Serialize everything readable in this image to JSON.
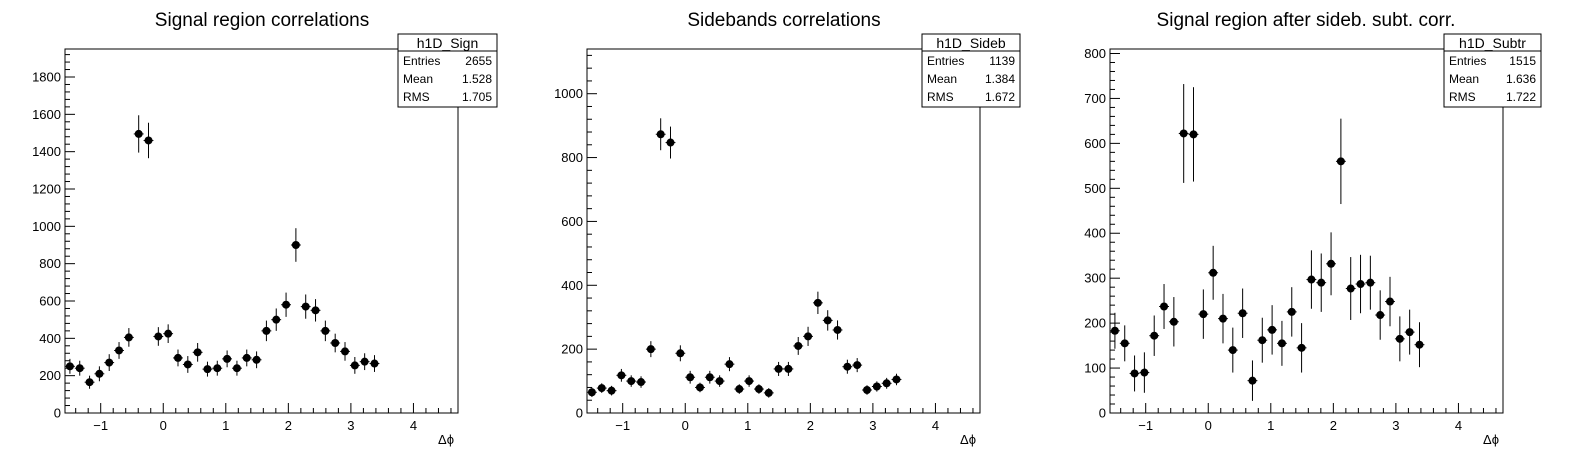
{
  "chart_data": [
    {
      "type": "scatter",
      "title": "Signal region correlations",
      "xlabel": "Δϕ",
      "ylabel": "",
      "xlim": [
        -1.5708,
        4.7124
      ],
      "ylim": [
        0,
        1950
      ],
      "xticks": [
        -1,
        0,
        1,
        2,
        3,
        4
      ],
      "yticks": [
        0,
        200,
        400,
        600,
        800,
        1000,
        1200,
        1400,
        1600,
        1800
      ],
      "stats": {
        "name": "h1D_Sign",
        "entries": "2655",
        "mean": "1.528",
        "rms": "1.705"
      },
      "points": {
        "x": [
          -1.4923,
          -1.3352,
          -1.1781,
          -1.021,
          -0.8639,
          -0.7069,
          -0.5498,
          -0.3927,
          -0.2356,
          -0.0785,
          0.0785,
          0.2356,
          0.3927,
          0.5498,
          0.7069,
          0.8639,
          1.021,
          1.1781,
          1.3352,
          1.4923,
          1.6493,
          1.8064,
          1.9635,
          2.1206,
          2.2777,
          2.4347,
          2.5918,
          2.7489,
          2.906,
          3.0631,
          3.2201,
          3.3772,
          3.5343,
          3.6914,
          3.8485,
          4.0055,
          4.1626,
          4.3197,
          4.4768,
          4.6339
        ],
        "y": [
          250,
          240,
          165,
          210,
          270,
          335,
          405,
          1495,
          1460,
          410,
          425,
          295,
          260,
          325,
          235,
          240,
          290,
          240,
          295,
          285,
          440,
          500,
          580,
          900,
          570,
          550,
          440,
          375,
          330,
          255,
          275,
          265,
          null,
          null,
          null,
          null,
          null,
          null,
          null,
          null
        ],
        "err": [
          40,
          40,
          35,
          40,
          45,
          45,
          50,
          100,
          95,
          50,
          50,
          45,
          45,
          50,
          40,
          40,
          45,
          40,
          45,
          45,
          55,
          60,
          65,
          90,
          65,
          60,
          55,
          50,
          50,
          45,
          45,
          45,
          null,
          null,
          null,
          null,
          null,
          null,
          null,
          null
        ]
      }
    },
    {
      "type": "scatter",
      "title": "Sidebands correlations",
      "xlabel": "Δϕ",
      "ylabel": "",
      "xlim": [
        -1.5708,
        4.7124
      ],
      "ylim": [
        0,
        1140
      ],
      "xticks": [
        -1,
        0,
        1,
        2,
        3,
        4
      ],
      "yticks": [
        0,
        200,
        400,
        600,
        800,
        1000
      ],
      "stats": {
        "name": "h1D_Sideb",
        "entries": "1139",
        "mean": "1.384",
        "rms": "1.672"
      },
      "points": {
        "x": [
          -1.4923,
          -1.3352,
          -1.1781,
          -1.021,
          -0.8639,
          -0.7069,
          -0.5498,
          -0.3927,
          -0.2356,
          -0.0785,
          0.0785,
          0.2356,
          0.3927,
          0.5498,
          0.7069,
          0.8639,
          1.021,
          1.1781,
          1.3352,
          1.4923,
          1.6493,
          1.8064,
          1.9635,
          2.1206,
          2.2777,
          2.4347,
          2.5918,
          2.7489,
          2.906,
          3.0631,
          3.2201,
          3.3772,
          3.5343,
          3.6914,
          3.8485,
          4.0055,
          4.1626,
          4.3197,
          4.4768,
          4.6339
        ],
        "y": [
          65,
          78,
          70,
          118,
          100,
          97,
          200,
          873,
          847,
          187,
          112,
          80,
          112,
          100,
          153,
          75,
          100,
          75,
          63,
          138,
          138,
          210,
          240,
          345,
          290,
          260,
          145,
          150,
          72,
          83,
          93,
          105,
          null,
          null,
          null,
          null,
          null,
          null,
          null,
          null
        ],
        "err": [
          15,
          15,
          15,
          20,
          18,
          18,
          25,
          50,
          50,
          25,
          20,
          15,
          20,
          18,
          22,
          15,
          18,
          15,
          15,
          22,
          22,
          28,
          30,
          35,
          32,
          30,
          22,
          22,
          15,
          16,
          17,
          18,
          null,
          null,
          null,
          null,
          null,
          null,
          null,
          null
        ]
      }
    },
    {
      "type": "scatter",
      "title": "Signal region after sideb. subt. corr.",
      "xlabel": "Δϕ",
      "ylabel": "",
      "xlim": [
        -1.5708,
        4.7124
      ],
      "ylim": [
        0,
        810
      ],
      "xticks": [
        -1,
        0,
        1,
        2,
        3,
        4
      ],
      "yticks": [
        0,
        100,
        200,
        300,
        400,
        500,
        600,
        700,
        800
      ],
      "stats": {
        "name": "h1D_Subtr",
        "entries": "1515",
        "mean": "1.636",
        "rms": "1.722"
      },
      "points": {
        "x": [
          -1.4923,
          -1.3352,
          -1.1781,
          -1.021,
          -0.8639,
          -0.7069,
          -0.5498,
          -0.3927,
          -0.2356,
          -0.0785,
          0.0785,
          0.2356,
          0.3927,
          0.5498,
          0.7069,
          0.8639,
          1.021,
          1.1781,
          1.3352,
          1.4923,
          1.6493,
          1.8064,
          1.9635,
          2.1206,
          2.2777,
          2.4347,
          2.5918,
          2.7489,
          2.906,
          3.0631,
          3.2201,
          3.3772,
          3.5343,
          3.6914,
          3.8485,
          4.0055,
          4.1626,
          4.3197,
          4.4768,
          4.6339
        ],
        "y": [
          183,
          155,
          88,
          90,
          172,
          237,
          203,
          622,
          620,
          220,
          312,
          210,
          140,
          222,
          72,
          162,
          185,
          155,
          225,
          145,
          297,
          290,
          332,
          560,
          277,
          287,
          290,
          218,
          248,
          165,
          180,
          152,
          null,
          null,
          null,
          null,
          null,
          null,
          null,
          null
        ],
        "err": [
          40,
          40,
          40,
          45,
          45,
          50,
          55,
          110,
          105,
          55,
          60,
          55,
          50,
          55,
          45,
          50,
          55,
          50,
          55,
          55,
          65,
          65,
          70,
          95,
          70,
          65,
          60,
          55,
          55,
          50,
          50,
          50,
          null,
          null,
          null,
          null,
          null,
          null,
          null,
          null
        ]
      }
    }
  ]
}
